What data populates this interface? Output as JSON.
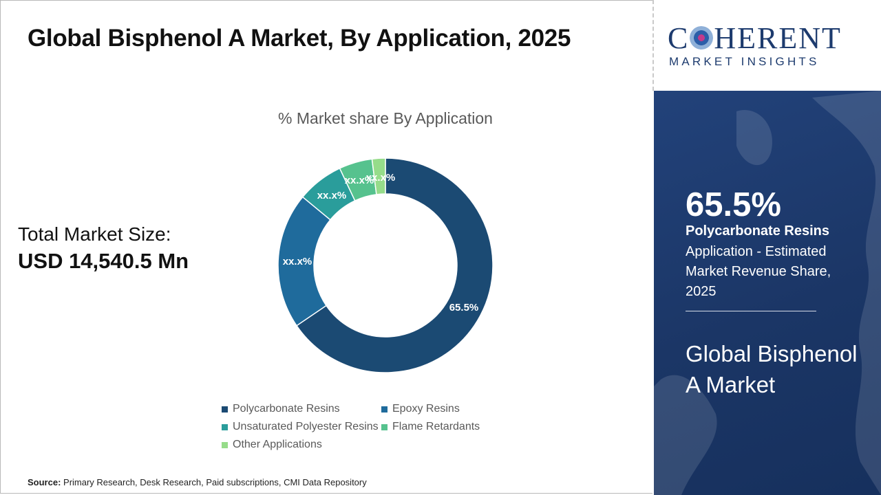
{
  "title": "Global Bisphenol A Market, By Application, 2025",
  "total_market_size": {
    "label": "Total Market Size:",
    "value": "USD 14,540.5 Mn"
  },
  "chart_data": {
    "type": "pie",
    "title": "% Market share By Application",
    "donut": true,
    "categories": [
      "Polycarbonate Resins",
      "Epoxy Resins",
      "Unsaturated Polyester Resins",
      "Flame Retardants",
      "Other Applications"
    ],
    "values": [
      65.5,
      20.5,
      7.0,
      5.0,
      2.0
    ],
    "data_labels": [
      "65.5%",
      "xx.x%",
      "xx.x%",
      "xx.x%",
      "xx.x%"
    ],
    "colors": [
      "#1b4a73",
      "#1f6b9c",
      "#2a9d9b",
      "#56c28e",
      "#96dc8a"
    ],
    "legend_position": "bottom"
  },
  "source": {
    "label": "Source:",
    "text": "Primary Research, Desk Research, Paid subscriptions, CMI Data Repository"
  },
  "logo": {
    "main_before": "C",
    "main_after": "HERENT",
    "sub": "MARKET INSIGHTS"
  },
  "highlight": {
    "value": "65.5%",
    "segment": "Polycarbonate Resins",
    "description": "Application - Estimated Market Revenue Share, 2025",
    "market_name": "Global Bisphenol A Market"
  }
}
